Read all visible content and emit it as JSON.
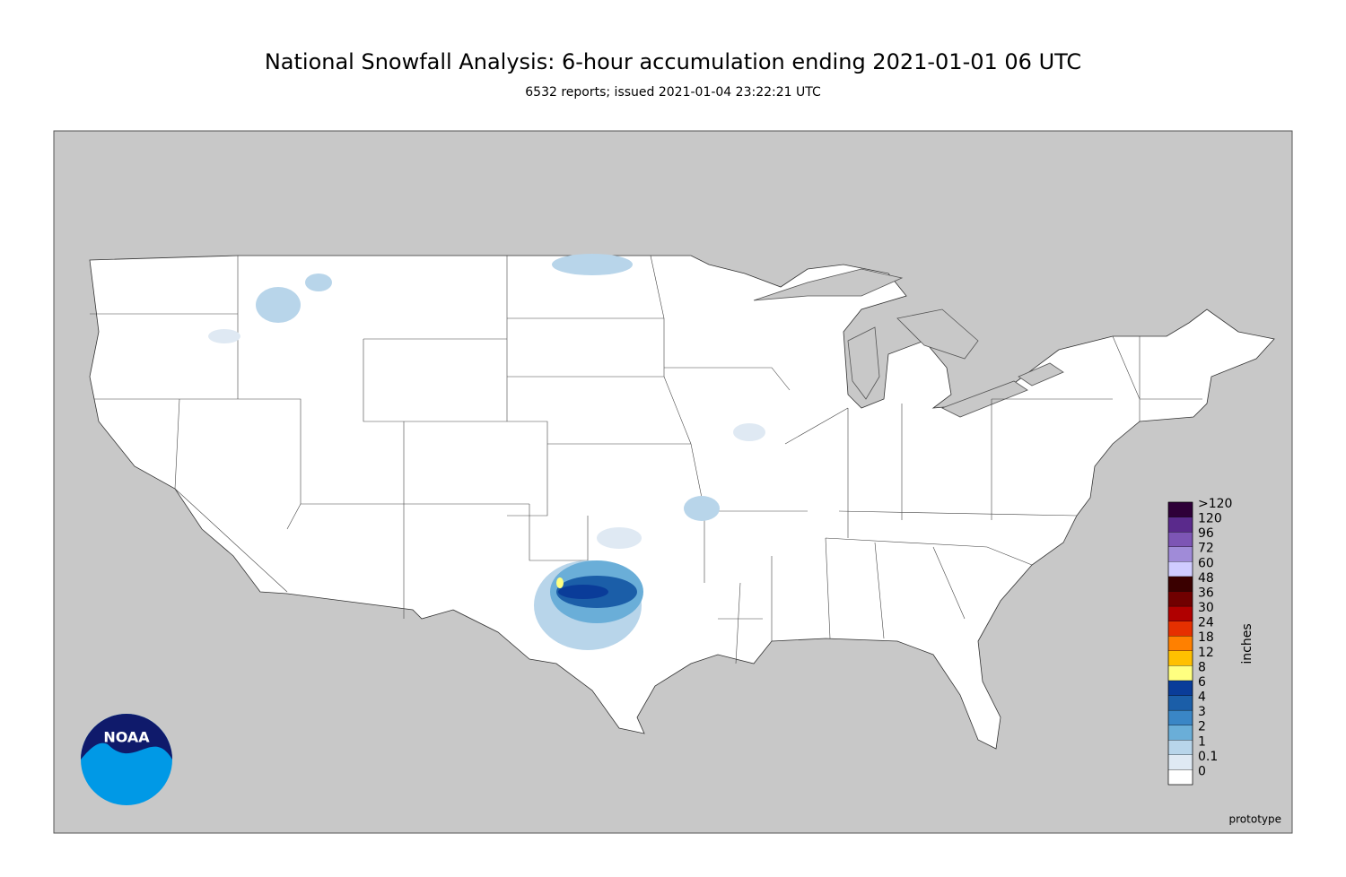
{
  "header": {
    "title": "National Snowfall Analysis: 6-hour accumulation ending 2021-01-01 06 UTC",
    "subtitle": "6532 reports; issued 2021-01-04 23:22:21 UTC"
  },
  "legend": {
    "unit": "inches",
    "labels": [
      "0",
      "0.1",
      "1",
      "2",
      "3",
      "4",
      "6",
      "8",
      "12",
      "18",
      "24",
      "30",
      "36",
      "48",
      "60",
      "72",
      "96",
      "120",
      ">120"
    ],
    "colors": [
      "#ffffff",
      "#dfe9f3",
      "#b8d5ea",
      "#6aaed8",
      "#3a86c6",
      "#1b5ea8",
      "#0a3c99",
      "#ffff80",
      "#ffc000",
      "#ff8000",
      "#e63000",
      "#b00000",
      "#700000",
      "#3a0000",
      "#d0ccff",
      "#a08bd8",
      "#7d55b5",
      "#5a2a8c",
      "#2e0038"
    ]
  },
  "logo": "NOAA",
  "footer": "prototype"
}
